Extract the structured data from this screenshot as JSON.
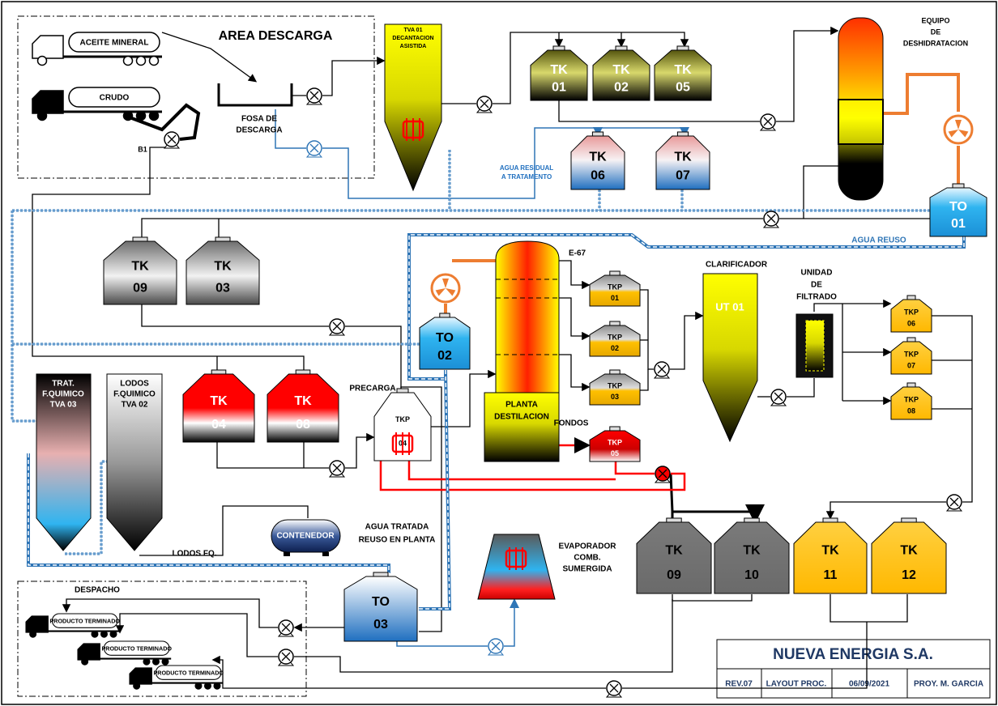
{
  "area_descarga": {
    "title": "AREA DESCARGA",
    "trucks": [
      "ACEITE MINERAL",
      "CRUDO"
    ],
    "pump": "B1",
    "pit": [
      "FOSA DE",
      "DESCARGA"
    ]
  },
  "units": {
    "tva01": [
      "TVA 01",
      "DECANTACION",
      "ASISTIDA"
    ],
    "dehydration": [
      "EQUIPO",
      "DE",
      "DESHIDRATACION"
    ],
    "residual_water": [
      "AGUA RESIDUAL",
      "A TRATAMENTO"
    ],
    "reuse_water": "AGUA REUSO",
    "exchanger": "E-67",
    "distillation": [
      "PLANTA",
      "DESTILACION"
    ],
    "clarifier": "CLARIFICADOR",
    "ut01": "UT 01",
    "filter": [
      "UNIDAD",
      "DE",
      "FILTRADO"
    ],
    "precharge": "PRECARGA",
    "bottoms": "FONDOS",
    "tva03": [
      "TRAT.",
      "F.QUIMICO",
      "TVA 03"
    ],
    "tva02": [
      "LODOS",
      "F.QUIMICO",
      "TVA 02"
    ],
    "container": "CONTENEDOR",
    "treated_water": [
      "AGUA TRATADA",
      "REUSO EN PLANTA"
    ],
    "sludge": "LODOS FQ.",
    "evaporator": [
      "EVAPORADOR",
      "COMB.",
      "SUMERGIDA"
    ]
  },
  "tanks": [
    {
      "tag": "TK",
      "num": "01"
    },
    {
      "tag": "TK",
      "num": "02"
    },
    {
      "tag": "TK",
      "num": "05"
    },
    {
      "tag": "TK",
      "num": "06"
    },
    {
      "tag": "TK",
      "num": "07"
    },
    {
      "tag": "TK",
      "num": "09"
    },
    {
      "tag": "TK",
      "num": "03"
    },
    {
      "tag": "TK",
      "num": "04"
    },
    {
      "tag": "TK",
      "num": "08"
    },
    {
      "tag": "TK",
      "num": "09"
    },
    {
      "tag": "TK",
      "num": "10"
    },
    {
      "tag": "TK",
      "num": "11"
    },
    {
      "tag": "TK",
      "num": "12"
    }
  ],
  "outlet_tanks": [
    {
      "tag": "TO",
      "num": "01"
    },
    {
      "tag": "TO",
      "num": "02"
    },
    {
      "tag": "TO",
      "num": "03"
    }
  ],
  "process_tanks": [
    {
      "tag": "TKP",
      "num": "01"
    },
    {
      "tag": "TKP",
      "num": "02"
    },
    {
      "tag": "TKP",
      "num": "03"
    },
    {
      "tag": "TKP",
      "num": "04"
    },
    {
      "tag": "TKP",
      "num": "05"
    },
    {
      "tag": "TKP",
      "num": "06"
    },
    {
      "tag": "TKP",
      "num": "07"
    },
    {
      "tag": "TKP",
      "num": "08"
    }
  ],
  "despacho": {
    "title": "DESPACHO",
    "trucks": [
      "PRODUCTO TERMINADO",
      "PRODUCTO TERMINADO",
      "PRODUCTO TERMINADO"
    ]
  },
  "title_block": {
    "company": "NUEVA ENERGIA S.A.",
    "revision": "REV.07",
    "drawing": "LAYOUT PROC.",
    "date": "06/09/2021",
    "author": "PROY. M. GARCIA"
  }
}
